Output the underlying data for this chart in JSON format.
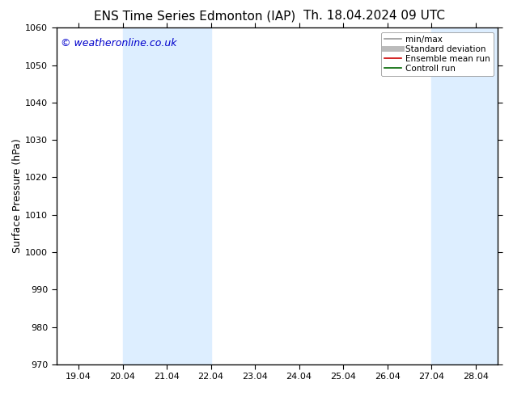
{
  "title_left": "ENS Time Series Edmonton (IAP)",
  "title_right": "Th. 18.04.2024 09 UTC",
  "ylabel": "Surface Pressure (hPa)",
  "ylim": [
    970,
    1060
  ],
  "yticks": [
    970,
    980,
    990,
    1000,
    1010,
    1020,
    1030,
    1040,
    1050,
    1060
  ],
  "xtick_labels": [
    "19.04",
    "20.04",
    "21.04",
    "22.04",
    "23.04",
    "24.04",
    "25.04",
    "26.04",
    "27.04",
    "28.04"
  ],
  "xtick_positions": [
    0,
    1,
    2,
    3,
    4,
    5,
    6,
    7,
    8,
    9
  ],
  "xlim": [
    -0.5,
    9.5
  ],
  "shaded_bands": [
    {
      "xstart": 1,
      "xend": 3,
      "color": "#ddeeff"
    },
    {
      "xstart": 8,
      "xend": 9.5,
      "color": "#ddeeff"
    }
  ],
  "watermark": "© weatheronline.co.uk",
  "watermark_color": "#0000cc",
  "background_color": "#ffffff",
  "plot_bg_color": "#ffffff",
  "legend_entries": [
    {
      "label": "min/max",
      "color": "#999999",
      "lw": 1.2,
      "style": "solid"
    },
    {
      "label": "Standard deviation",
      "color": "#bbbbbb",
      "lw": 5,
      "style": "solid"
    },
    {
      "label": "Ensemble mean run",
      "color": "#cc0000",
      "lw": 1.2,
      "style": "solid"
    },
    {
      "label": "Controll run",
      "color": "#006600",
      "lw": 1.2,
      "style": "solid"
    }
  ],
  "title_fontsize": 11,
  "tick_fontsize": 8,
  "ylabel_fontsize": 9,
  "watermark_fontsize": 9,
  "legend_fontsize": 7.5,
  "figsize": [
    6.34,
    4.9
  ],
  "dpi": 100
}
